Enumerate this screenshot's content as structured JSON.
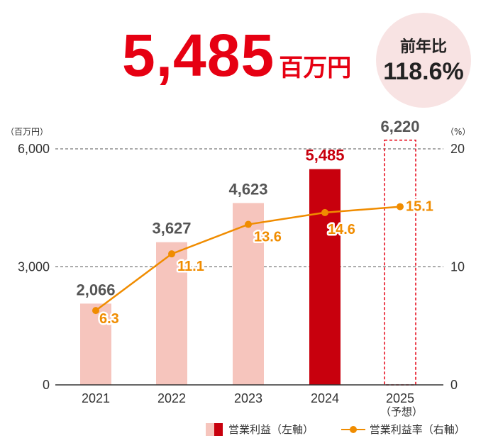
{
  "headline": {
    "value": "5,485",
    "unit": "百万円"
  },
  "yoy": {
    "label": "前年比",
    "value": "118.6%"
  },
  "colors": {
    "accent": "#e60012",
    "bar_past": "#f6c5bd",
    "bar_current": "#c8000d",
    "forecast_border": "#e60012",
    "line": "#f08c00",
    "yoy_bg": "#f8e3e3"
  },
  "legend": {
    "bar": "営業利益（左軸）",
    "line": "営業利益率（右軸）"
  },
  "chart_data": {
    "type": "bar",
    "categories": [
      "2021",
      "2022",
      "2023",
      "2024",
      "2025"
    ],
    "category_sublabels": [
      "",
      "",
      "",
      "",
      "（予想）"
    ],
    "bar_labels": [
      "2,066",
      "3,627",
      "4,623",
      "5,485",
      "6,220"
    ],
    "ylabel_left": "（百万円）",
    "ylabel_right": "（%）",
    "ylim_left": [
      0,
      6000
    ],
    "ylim_right": [
      0,
      20
    ],
    "left_ticks": [
      "0",
      "3,000",
      "6,000"
    ],
    "right_ticks": [
      "0",
      "10",
      "20"
    ],
    "series": [
      {
        "name": "営業利益",
        "axis": "left",
        "type": "bar",
        "values": [
          2066,
          3627,
          4623,
          5485,
          6220
        ]
      },
      {
        "name": "営業利益率",
        "axis": "right",
        "type": "line",
        "values": [
          6.3,
          11.1,
          13.6,
          14.6,
          15.1
        ],
        "labels": [
          "6.3",
          "11.1",
          "13.6",
          "14.6",
          "15.1"
        ]
      }
    ],
    "bar_styles": [
      "past",
      "past",
      "past",
      "current",
      "forecast"
    ],
    "grid": "dashed at 3,000 and 6,000",
    "legend_position": "bottom-right"
  }
}
